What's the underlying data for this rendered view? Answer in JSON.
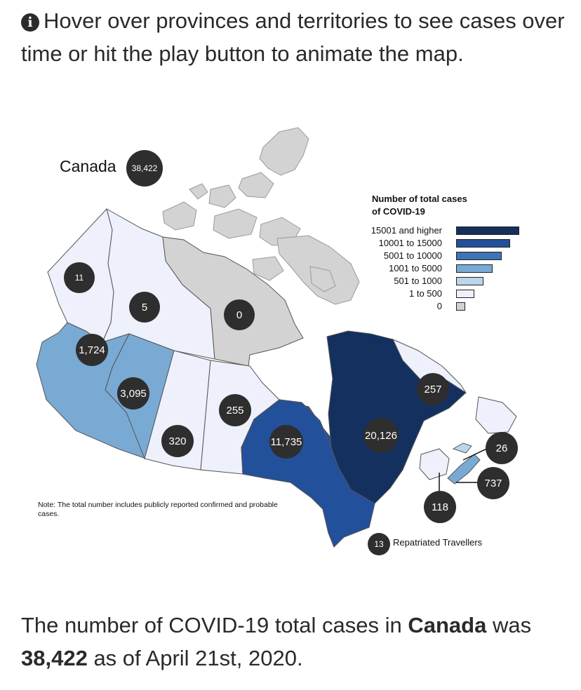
{
  "intro": {
    "icon": "info-circle-icon",
    "text": "Hover over provinces and territories to see cases over time or hit the play button to animate the map."
  },
  "canada": {
    "label": "Canada",
    "total": "38,422"
  },
  "legend": {
    "title_line1": "Number of total cases",
    "title_line2": "of COVID-19",
    "items": [
      {
        "label": "15001 and higher",
        "color": "#14305f"
      },
      {
        "label": "10001 to 15000",
        "color": "#23509a"
      },
      {
        "label": "5001 to 10000",
        "color": "#3f74b5"
      },
      {
        "label": "1001 to 5000",
        "color": "#78aad4"
      },
      {
        "label": "501 to 1000",
        "color": "#bcd5ea"
      },
      {
        "label": "1 to 500",
        "color": "#eef0fb"
      },
      {
        "label": "0",
        "color": "#d3d3d3"
      }
    ]
  },
  "regions": {
    "yukon": "11",
    "northwest_territories": "5",
    "nunavut": "0",
    "british_columbia": "1,724",
    "alberta": "3,095",
    "saskatchewan": "320",
    "manitoba": "255",
    "ontario": "11,735",
    "quebec": "20,126",
    "newfoundland_labrador": "257",
    "prince_edward_island": "26",
    "nova_scotia": "737",
    "new_brunswick": "118",
    "repatriated_travellers": "13"
  },
  "repatriated_label": "Repatriated Travellers",
  "note": "Note: The total number includes publicly reported confirmed and probable cases.",
  "summary": {
    "prefix": "The number of COVID-19 total cases in ",
    "place": "Canada",
    "middle": " was ",
    "total": "38,422",
    "suffix": " as of April 21st, 2020."
  }
}
